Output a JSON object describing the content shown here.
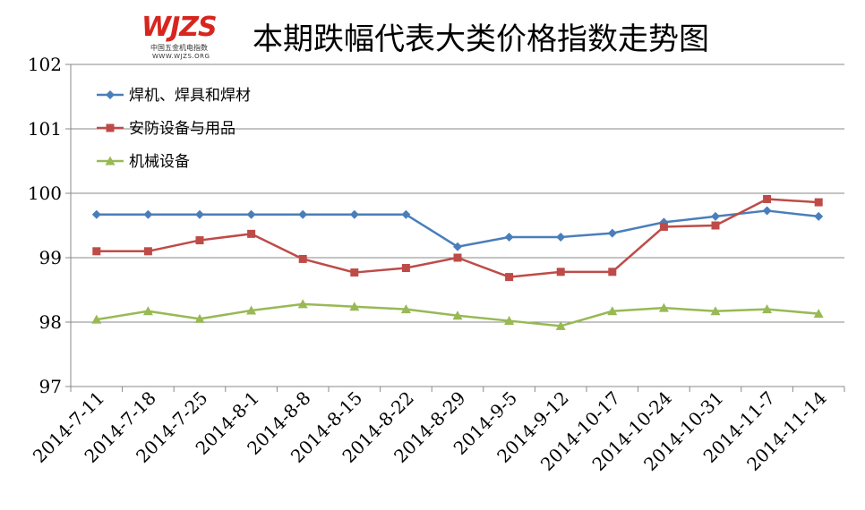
{
  "logo": {
    "mark": "WJZS",
    "subtitle": "中国五金机电指数",
    "url": "WWW.WJZS.ORG"
  },
  "chart_data": {
    "type": "line",
    "title": "本期跌幅代表大类价格指数走势图",
    "categories": [
      "2014-7-11",
      "2014-7-18",
      "2014-7-25",
      "2014-8-1",
      "2014-8-8",
      "2014-8-15",
      "2014-8-22",
      "2014-8-29",
      "2014-9-5",
      "2014-9-12",
      "2014-10-17",
      "2014-10-24",
      "2014-10-31",
      "2014-11-7",
      "2014-11-14"
    ],
    "ylim": [
      97,
      102
    ],
    "yticks": [
      "97",
      "98",
      "99",
      "100",
      "101",
      "102"
    ],
    "grid": true,
    "legend_position": "top-left",
    "series": [
      {
        "name": "焊机、焊具和焊材",
        "color": "#4a7ebb",
        "marker": "diamond",
        "values": [
          99.67,
          99.67,
          99.67,
          99.67,
          99.67,
          99.67,
          99.67,
          99.17,
          99.32,
          99.32,
          99.38,
          99.55,
          99.64,
          99.73,
          99.64
        ]
      },
      {
        "name": "安防设备与用品",
        "color": "#be4b48",
        "marker": "square",
        "values": [
          99.1,
          99.1,
          99.27,
          99.37,
          98.98,
          98.77,
          98.84,
          99.0,
          98.7,
          98.78,
          98.78,
          99.48,
          99.5,
          99.91,
          99.86
        ]
      },
      {
        "name": "机械设备",
        "color": "#98b954",
        "marker": "triangle",
        "values": [
          98.04,
          98.17,
          98.05,
          98.18,
          98.28,
          98.24,
          98.2,
          98.1,
          98.02,
          97.94,
          98.17,
          98.22,
          98.17,
          98.2,
          98.13
        ]
      }
    ]
  }
}
